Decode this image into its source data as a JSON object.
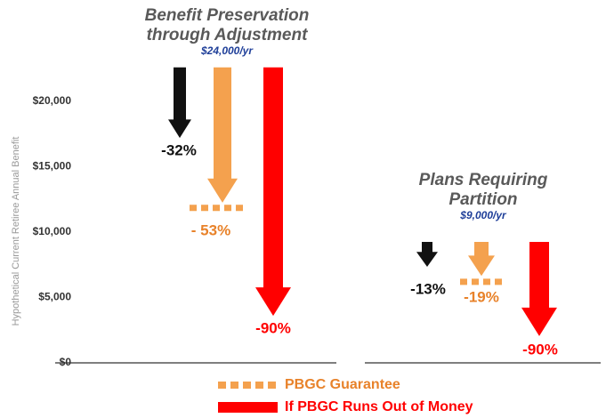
{
  "chart_data": {
    "type": "arrow",
    "ylabel": "Hypothetical Current Retiree Annual Benefit",
    "ylim": [
      0,
      25000
    ],
    "yticks": [
      {
        "value": 0,
        "label": "$0"
      },
      {
        "value": 5000,
        "label": "$5,000"
      },
      {
        "value": 10000,
        "label": "$10,000"
      },
      {
        "value": 15000,
        "label": "$15,000"
      },
      {
        "value": 20000,
        "label": "$20,000"
      }
    ],
    "groups": [
      {
        "title": [
          "Benefit Preservation",
          "through Adjustment"
        ],
        "subtitle": "$24,000/yr",
        "start": 22600,
        "guarantee": 11850,
        "arrows": [
          {
            "value": 17200,
            "label": "-32%",
            "color": "#111111"
          },
          {
            "value": 12250,
            "label": "- 53%",
            "color": "#f4a14e"
          },
          {
            "value": 3600,
            "label": "-90%",
            "color": "#ff0000"
          }
        ]
      },
      {
        "title": [
          "Plans Requiring",
          "Partition"
        ],
        "subtitle": "$9,000/yr",
        "start": 9250,
        "guarantee": 6200,
        "arrows": [
          {
            "value": 7350,
            "label": "-13%",
            "color": "#111111"
          },
          {
            "value": 6650,
            "label": "-19%",
            "color": "#f4a14e"
          },
          {
            "value": 2050,
            "label": "-90%",
            "color": "#ff0000"
          }
        ]
      }
    ],
    "legend": [
      {
        "name": "PBGC Guarantee",
        "color": "#f4a14e"
      },
      {
        "name": "If PBGC Runs Out of Money",
        "color": "#ff0000"
      }
    ]
  }
}
